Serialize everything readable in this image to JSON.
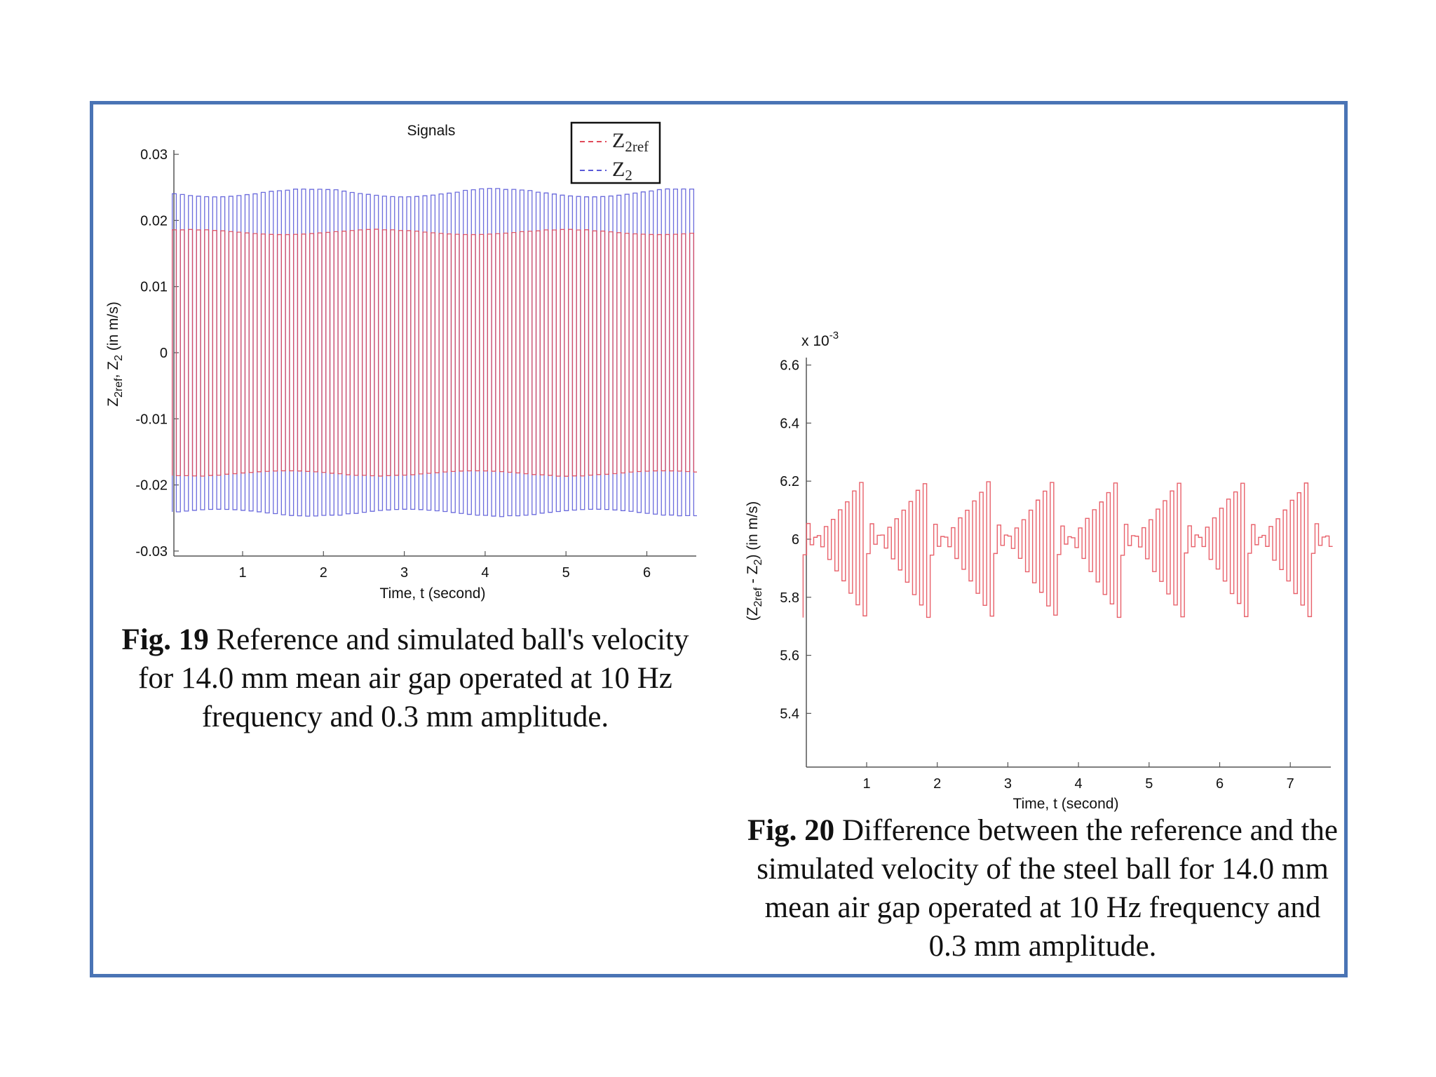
{
  "colors": {
    "frame": "#4a74b5",
    "ref": "#e04a5a",
    "sim": "#5a5ad8",
    "diff": "#e8606a"
  },
  "figure19": {
    "caption_label": "Fig. 19",
    "caption_text": " Reference and simulated ball's velocity for 14.0 mm mean air gap operated at 10 Hz frequency and 0.3 mm amplitude."
  },
  "figure20": {
    "caption_label": "Fig. 20",
    "caption_text": " Difference between the reference and the simulated velocity of the steel ball for 14.0 mm mean air gap operated at 10 Hz frequency and 0.3 mm amplitude."
  },
  "chart_data": [
    {
      "type": "line",
      "title": "Signals",
      "xlabel": "Time, t (second)",
      "ylabel": "Z2ref, Z2 (in m/s)",
      "xlim": [
        0.13,
        6.62
      ],
      "ylim": [
        -0.031,
        0.031
      ],
      "xticks": [
        "1",
        "2",
        "3",
        "4",
        "5",
        "6"
      ],
      "yticks": [
        "0.03",
        "0.02",
        "0.01",
        "0",
        "-0.01",
        "-0.02",
        "-0.03"
      ],
      "legend_position": "top-right",
      "series": [
        {
          "name": "Z2ref",
          "style": "dashed",
          "frequency_hz": 10,
          "upper": [
            0.0175,
            0.0187
          ],
          "lower": [
            -0.0175,
            -0.0187
          ]
        },
        {
          "name": "Z2",
          "style": "dashed",
          "frequency_hz": 10,
          "upper": [
            0.023,
            0.0249
          ],
          "lower": [
            -0.0232,
            -0.0248
          ]
        }
      ]
    },
    {
      "type": "line",
      "title": "",
      "xlabel": "Time, t (second)",
      "ylabel": "(Z2ref - Z2) (in m/s)",
      "y_multiplier": "x 10-3",
      "xlim": [
        0.1,
        7.6
      ],
      "ylim": [
        5.21,
        6.66
      ],
      "xticks": [
        "1",
        "2",
        "3",
        "4",
        "5",
        "6",
        "7"
      ],
      "yticks": [
        "6.6",
        "6.4",
        "6.2",
        "6",
        "5.8",
        "5.6",
        "5.4"
      ],
      "series": [
        {
          "name": "",
          "frequency_hz": 10,
          "range": [
            5.73,
            6.2
          ],
          "typical_range": [
            5.82,
            6.18
          ]
        }
      ]
    }
  ]
}
